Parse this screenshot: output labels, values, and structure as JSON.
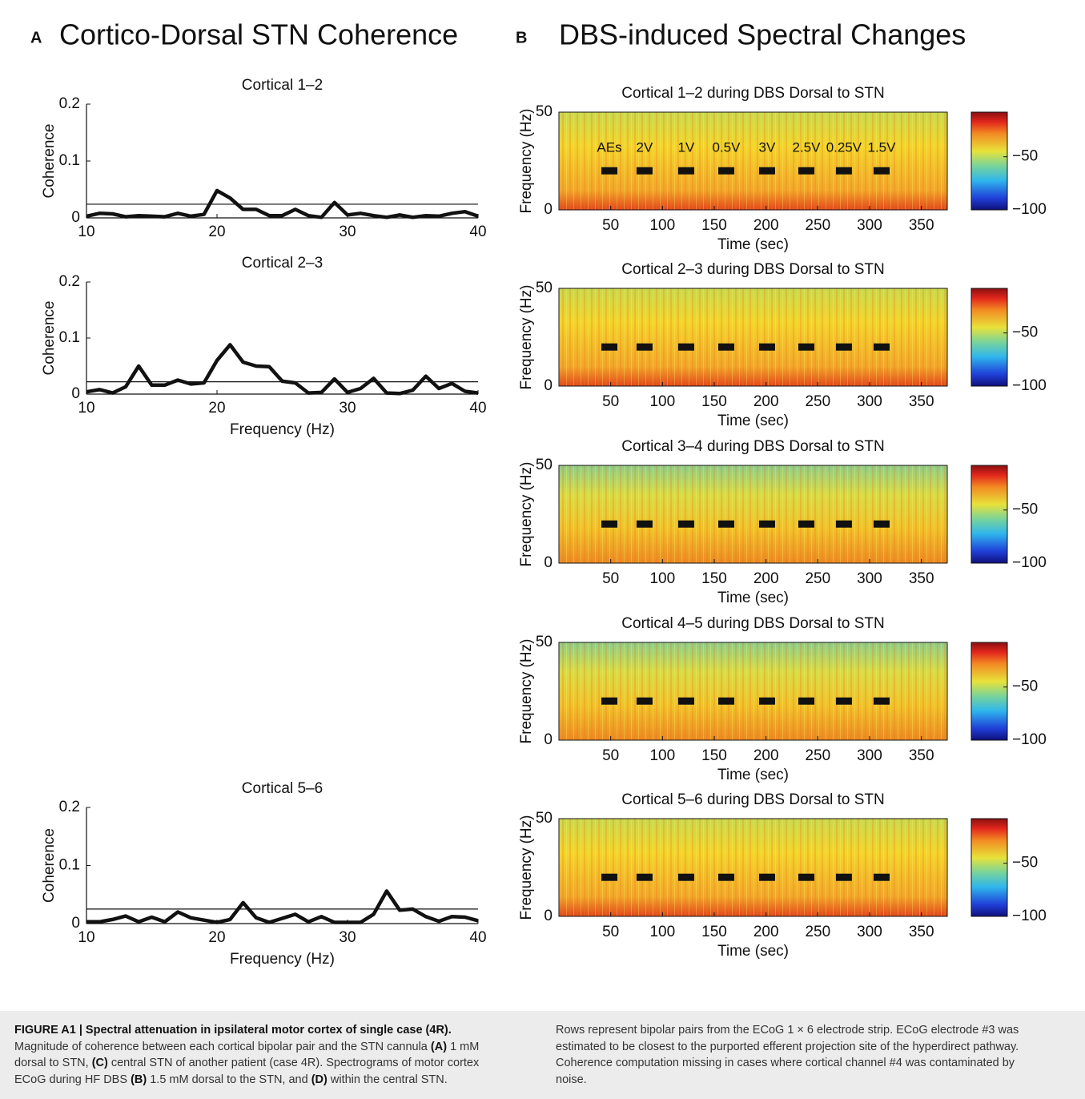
{
  "header": {
    "panel_a_letter": "A",
    "panel_a_title": "Cortico-Dorsal STN Coherence",
    "panel_b_letter": "B",
    "panel_b_title": "DBS-induced Spectral Changes"
  },
  "chart_data": [
    {
      "type": "line",
      "title": "Cortical 1–2",
      "ylabel": "Coherence",
      "x": [
        10,
        11,
        12,
        13,
        14,
        15,
        16,
        17,
        18,
        19,
        20,
        21,
        22,
        23,
        24,
        25,
        26,
        27,
        28,
        29,
        30,
        31,
        32,
        33,
        34,
        35,
        36,
        37,
        38,
        39,
        40
      ],
      "series": [
        {
          "color": "#111111",
          "values": [
            0.003,
            0.008,
            0.007,
            0.002,
            0.004,
            0.003,
            0.002,
            0.008,
            0.003,
            0.006,
            0.048,
            0.035,
            0.015,
            0.015,
            0.004,
            0.004,
            0.015,
            0.004,
            0.001,
            0.027,
            0.005,
            0.008,
            0.004,
            0.001,
            0.005,
            0.001,
            0.004,
            0.003,
            0.008,
            0.011,
            0.003
          ]
        }
      ],
      "threshold": 0.024,
      "xlim": [
        10,
        40
      ],
      "ylim": [
        0,
        0.2
      ],
      "xticks": [
        10,
        20,
        30,
        40
      ],
      "yticks": [
        0,
        0.1,
        0.2
      ]
    },
    {
      "type": "line",
      "title": "Cortical 2–3",
      "ylabel": "Coherence",
      "xlabel": "Frequency (Hz)",
      "x": [
        10,
        11,
        12,
        13,
        14,
        15,
        16,
        17,
        18,
        19,
        20,
        21,
        22,
        23,
        24,
        25,
        26,
        27,
        28,
        29,
        30,
        31,
        32,
        33,
        34,
        35,
        36,
        37,
        38,
        39,
        40
      ],
      "series": [
        {
          "color": "#111111",
          "values": [
            0.004,
            0.008,
            0.002,
            0.013,
            0.05,
            0.016,
            0.016,
            0.025,
            0.018,
            0.02,
            0.06,
            0.088,
            0.057,
            0.05,
            0.049,
            0.023,
            0.02,
            0.002,
            0.003,
            0.027,
            0.003,
            0.01,
            0.028,
            0.002,
            0.001,
            0.007,
            0.032,
            0.01,
            0.019,
            0.005,
            0.002
          ]
        }
      ],
      "threshold": 0.022,
      "xlim": [
        10,
        40
      ],
      "ylim": [
        0,
        0.2
      ],
      "xticks": [
        10,
        20,
        30,
        40
      ],
      "yticks": [
        0,
        0.1,
        0.2
      ]
    },
    {
      "type": "line",
      "title": "Cortical 5–6",
      "ylabel": "Coherence",
      "xlabel": "Frequency (Hz)",
      "x": [
        10,
        11,
        12,
        13,
        14,
        15,
        16,
        17,
        18,
        19,
        20,
        21,
        22,
        23,
        24,
        25,
        26,
        27,
        28,
        29,
        30,
        31,
        32,
        33,
        34,
        35,
        36,
        37,
        38,
        39,
        40
      ],
      "series": [
        {
          "color": "#111111",
          "values": [
            0.003,
            0.003,
            0.007,
            0.013,
            0.003,
            0.011,
            0.003,
            0.02,
            0.01,
            0.006,
            0.002,
            0.007,
            0.036,
            0.01,
            0.002,
            0.009,
            0.016,
            0.003,
            0.012,
            0.002,
            0.002,
            0.002,
            0.016,
            0.056,
            0.023,
            0.025,
            0.012,
            0.004,
            0.012,
            0.011,
            0.005
          ]
        }
      ],
      "threshold": 0.025,
      "xlim": [
        10,
        40
      ],
      "ylim": [
        0,
        0.2
      ],
      "xticks": [
        10,
        20,
        30,
        40
      ],
      "yticks": [
        0,
        0.1,
        0.2
      ]
    },
    {
      "type": "spectrogram",
      "title": "Cortical 1–2 during DBS Dorsal to STN",
      "xlabel": "Time (sec)",
      "ylabel": "Frequency (Hz)",
      "xlim": [
        0,
        375
      ],
      "ylim": [
        0,
        50
      ],
      "xticks": [
        50,
        100,
        150,
        200,
        250,
        300,
        350
      ],
      "yticks": [
        0,
        50
      ],
      "clim": [
        -100,
        -8
      ],
      "cticks": [
        {
          "value": -50,
          "label": "−50"
        },
        {
          "value": -100,
          "label": "−100"
        }
      ],
      "stim_freq": 20,
      "stim_times": [
        48.7,
        82.7,
        122.9,
        161.6,
        201,
        238.9,
        275.2,
        311.6
      ],
      "stim_labels": [
        "AEs",
        "2V",
        "1V",
        "0.5V",
        "3V",
        "2.5V",
        "0.25V",
        "1.5V"
      ]
    },
    {
      "type": "spectrogram",
      "title": "Cortical 2–3 during DBS Dorsal to STN",
      "xlabel": "Time (sec)",
      "ylabel": "Frequency (Hz)",
      "xlim": [
        0,
        375
      ],
      "ylim": [
        0,
        50
      ],
      "xticks": [
        50,
        100,
        150,
        200,
        250,
        300,
        350
      ],
      "yticks": [
        0,
        50
      ],
      "clim": [
        -100,
        -8
      ],
      "cticks": [
        {
          "value": -50,
          "label": "−50"
        },
        {
          "value": -100,
          "label": "−100"
        }
      ],
      "stim_freq": 20,
      "stim_times": [
        48.7,
        82.7,
        122.9,
        161.6,
        201,
        238.9,
        275.2,
        311.6
      ]
    },
    {
      "type": "spectrogram",
      "title": "Cortical 3–4 during DBS Dorsal to STN",
      "xlabel": "Time (sec)",
      "ylabel": "Frequency (Hz)",
      "xlim": [
        0,
        375
      ],
      "ylim": [
        0,
        50
      ],
      "xticks": [
        50,
        100,
        150,
        200,
        250,
        300,
        350
      ],
      "yticks": [
        0,
        50
      ],
      "clim": [
        -100,
        -8
      ],
      "cticks": [
        {
          "value": -50,
          "label": "−50"
        },
        {
          "value": -100,
          "label": "−100"
        }
      ],
      "stim_freq": 20,
      "stim_times": [
        48.7,
        82.7,
        122.9,
        161.6,
        201,
        238.9,
        275.2,
        311.6
      ]
    },
    {
      "type": "spectrogram",
      "title": "Cortical 4–5 during DBS Dorsal to STN",
      "xlabel": "Time (sec)",
      "ylabel": "Frequency (Hz)",
      "xlim": [
        0,
        375
      ],
      "ylim": [
        0,
        50
      ],
      "xticks": [
        50,
        100,
        150,
        200,
        250,
        300,
        350
      ],
      "yticks": [
        0,
        50
      ],
      "clim": [
        -100,
        -8
      ],
      "cticks": [
        {
          "value": -50,
          "label": "−50"
        },
        {
          "value": -100,
          "label": "−100"
        }
      ],
      "stim_freq": 20,
      "stim_times": [
        48.7,
        82.7,
        122.9,
        161.6,
        201,
        238.9,
        275.2,
        311.6
      ]
    },
    {
      "type": "spectrogram",
      "title": "Cortical 5–6 during DBS Dorsal to STN",
      "xlabel": "Time (sec)",
      "ylabel": "Frequency (Hz)",
      "xlim": [
        0,
        375
      ],
      "ylim": [
        0,
        50
      ],
      "xticks": [
        50,
        100,
        150,
        200,
        250,
        300,
        350
      ],
      "yticks": [
        0,
        50
      ],
      "clim": [
        -100,
        -8
      ],
      "cticks": [
        {
          "value": -50,
          "label": "−50"
        },
        {
          "value": -100,
          "label": "−100"
        }
      ],
      "stim_freq": 20,
      "stim_times": [
        48.7,
        82.7,
        122.9,
        161.6,
        201,
        238.9,
        275.2,
        311.6
      ]
    }
  ],
  "caption": {
    "left": [
      {
        "text": "FIGURE A1 | Spectral attenuation in ipsilateral motor cortex of single case (4R).",
        "bold": true
      },
      {
        "text": " Magnitude of coherence between each cortical bipolar pair and the STN cannula ",
        "bold": false
      },
      {
        "text": "(A)",
        "bold": true
      },
      {
        "text": " 1 mM dorsal to STN, ",
        "bold": false
      },
      {
        "text": "(C)",
        "bold": true
      },
      {
        "text": " central STN of another patient (case 4R). Spectrograms of motor cortex ECoG during HF DBS ",
        "bold": false
      },
      {
        "text": "(B)",
        "bold": true
      },
      {
        "text": " 1.5 mM dorsal to the STN, and ",
        "bold": false
      },
      {
        "text": "(D)",
        "bold": true
      },
      {
        "text": " within the central STN.",
        "bold": false
      }
    ],
    "right": "Rows represent bipolar pairs from the ECoG 1 × 6 electrode strip. ECoG electrode #3 was estimated to be closest to the purported efferent projection site of the hyperdirect pathway. Coherence computation missing in cases where cortical channel #4 was contaminated by noise."
  }
}
